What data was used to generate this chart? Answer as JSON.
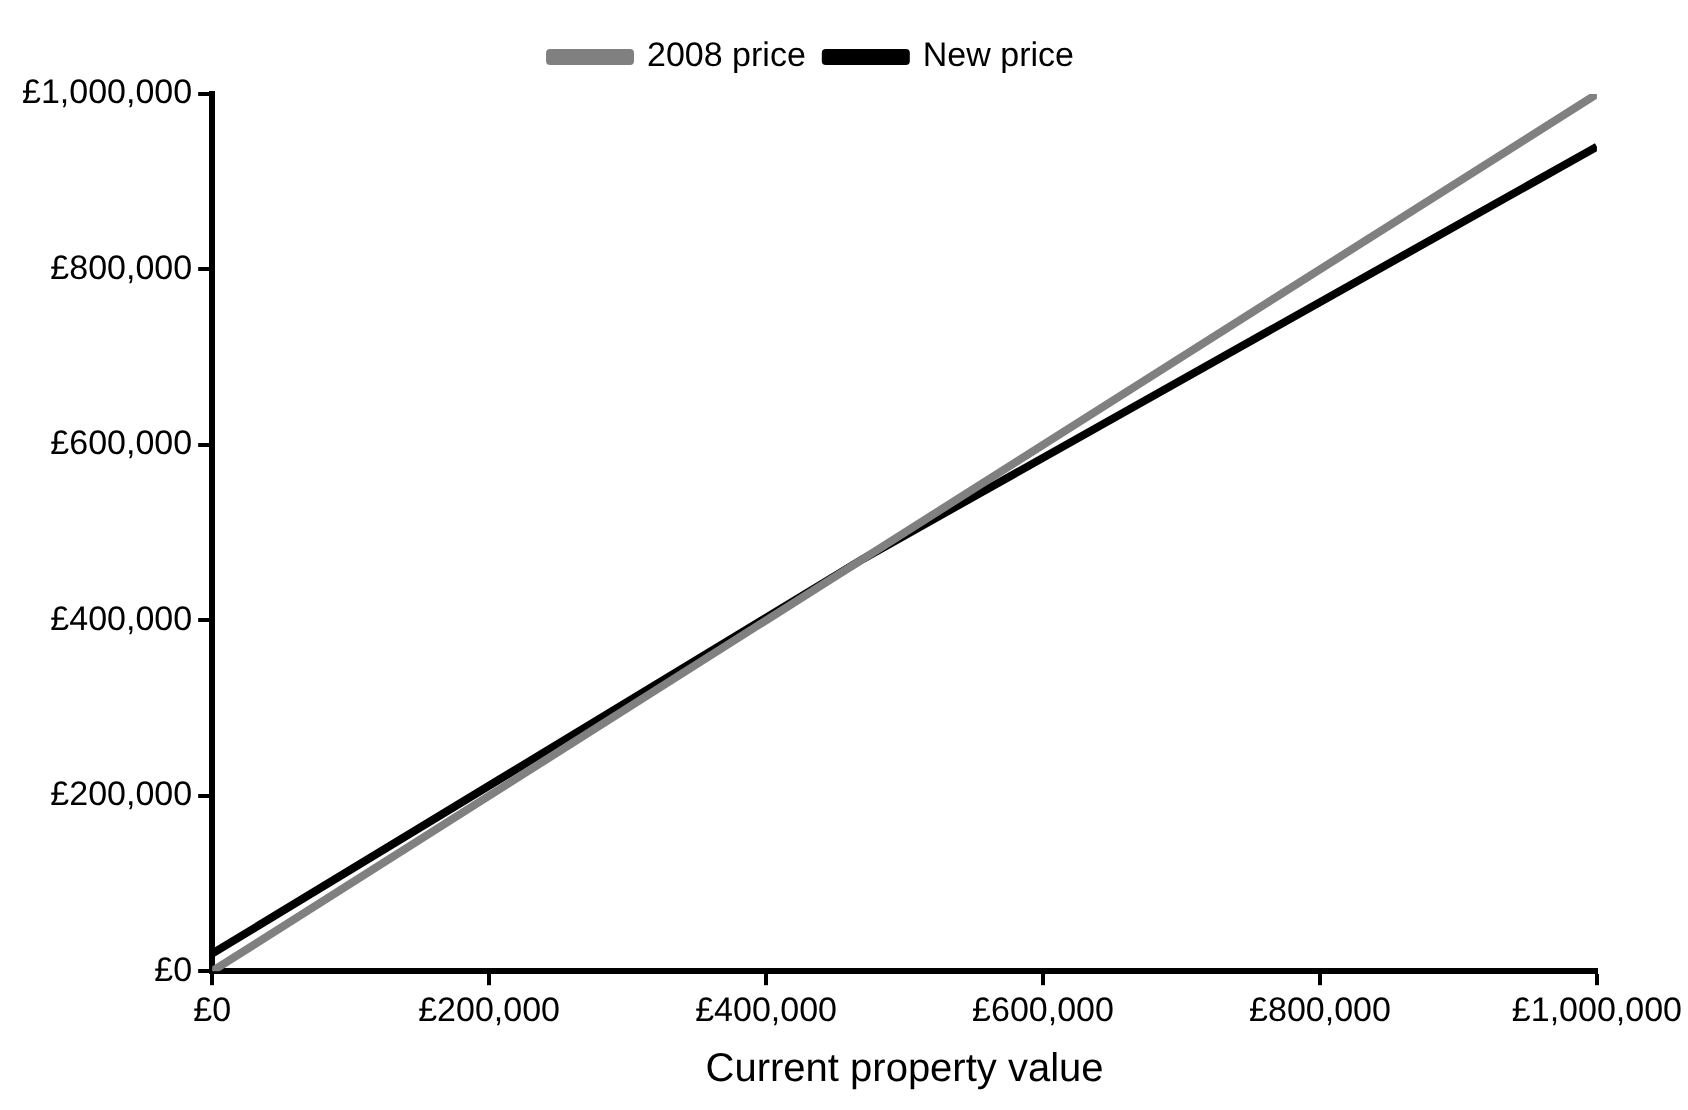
{
  "chart_data": {
    "type": "line",
    "xlabel": "Current property value",
    "xlim": [
      0,
      1000000
    ],
    "ylim": [
      0,
      1000000
    ],
    "xticks": [
      {
        "value": 0,
        "label": "£0"
      },
      {
        "value": 200000,
        "label": "£200,000"
      },
      {
        "value": 400000,
        "label": "£400,000"
      },
      {
        "value": 600000,
        "label": "£600,000"
      },
      {
        "value": 800000,
        "label": "£800,000"
      },
      {
        "value": 1000000,
        "label": "£1,000,000"
      }
    ],
    "yticks": [
      {
        "value": 0,
        "label": "£0"
      },
      {
        "value": 200000,
        "label": "£200,000"
      },
      {
        "value": 400000,
        "label": "£400,000"
      },
      {
        "value": 600000,
        "label": "£600,000"
      },
      {
        "value": 800000,
        "label": "£800,000"
      },
      {
        "value": 1000000,
        "label": "£1,000,000"
      }
    ],
    "series": [
      {
        "name": "2008 price",
        "color": "#808080",
        "x": [
          0,
          1000000
        ],
        "values": [
          0,
          1000000
        ]
      },
      {
        "name": "New price",
        "color": "#000000",
        "x": [
          0,
          470000,
          1000000
        ],
        "values": [
          20000,
          470000,
          940000
        ]
      }
    ],
    "grid": false,
    "legend": "top",
    "marker": "none",
    "line_style": "solid"
  }
}
